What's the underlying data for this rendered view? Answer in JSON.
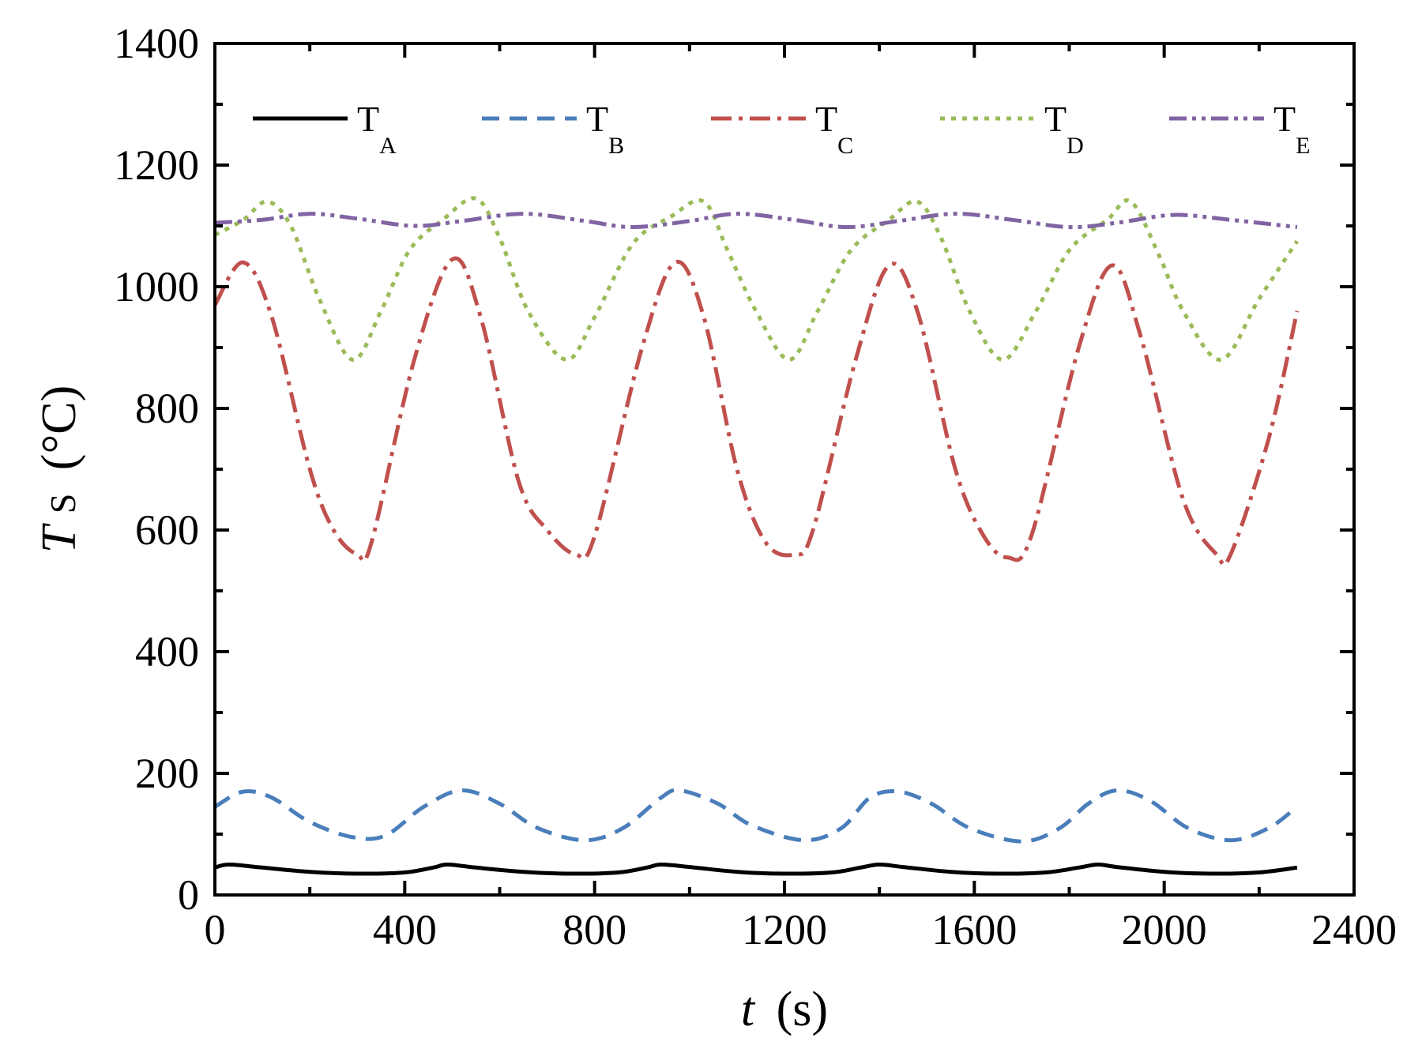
{
  "chart_data": {
    "type": "line",
    "title": "",
    "xlabel": {
      "var": "t",
      "unit": "(s)"
    },
    "ylabel": {
      "var": "T",
      "sub": "S",
      "unit": "(°C)"
    },
    "xlim": [
      0,
      2400
    ],
    "ylim": [
      0,
      1400
    ],
    "xticks": [
      0,
      400,
      800,
      1200,
      1600,
      2000,
      2400
    ],
    "xtick_labels": [
      "0",
      "400",
      "800",
      "1200",
      "1600",
      "2000",
      "2400"
    ],
    "yticks": [
      0,
      200,
      400,
      600,
      800,
      1000,
      1200,
      1400
    ],
    "ytick_labels": [
      "0",
      "200",
      "400",
      "600",
      "800",
      "1000",
      "1200",
      "1400"
    ],
    "grid": false,
    "legend_position": "top",
    "series": [
      {
        "name": "T_A",
        "label_main": "T",
        "label_sub": "A",
        "color": "#000000",
        "style": "solid",
        "x": [
          0,
          30,
          100,
          200,
          300,
          400,
          460,
          490,
          550,
          650,
          750,
          850,
          910,
          940,
          1000,
          1100,
          1200,
          1300,
          1360,
          1400,
          1450,
          1550,
          1650,
          1750,
          1820,
          1860,
          1900,
          2000,
          2100,
          2200,
          2280
        ],
        "y": [
          45,
          50,
          45,
          38,
          35,
          37,
          45,
          50,
          45,
          38,
          35,
          37,
          45,
          50,
          46,
          38,
          35,
          37,
          45,
          50,
          46,
          38,
          35,
          37,
          45,
          50,
          46,
          38,
          35,
          37,
          45
        ]
      },
      {
        "name": "T_B",
        "label_main": "T",
        "label_sub": "B",
        "color": "#4a7ebb",
        "style": "dashed",
        "x": [
          0,
          60,
          120,
          200,
          290,
          360,
          440,
          520,
          600,
          680,
          780,
          860,
          940,
          980,
          1060,
          1130,
          1240,
          1320,
          1380,
          1440,
          1510,
          1590,
          1700,
          1780,
          1840,
          1900,
          1970,
          2050,
          2140,
          2220,
          2280
        ],
        "y": [
          145,
          170,
          160,
          120,
          95,
          98,
          145,
          172,
          150,
          110,
          90,
          110,
          160,
          172,
          150,
          115,
          90,
          110,
          160,
          170,
          150,
          110,
          88,
          110,
          150,
          172,
          155,
          110,
          90,
          110,
          145
        ]
      },
      {
        "name": "T_C",
        "label_main": "T",
        "label_sub": "C",
        "color": "#c0504d",
        "style": "dashdot",
        "x": [
          0,
          60,
          120,
          200,
          250,
          300,
          330,
          420,
          500,
          560,
          640,
          700,
          760,
          800,
          900,
          970,
          1030,
          1100,
          1160,
          1220,
          1260,
          1350,
          1420,
          1480,
          1560,
          1620,
          1670,
          1720,
          1820,
          1890,
          1950,
          2040,
          2110,
          2140,
          2220,
          2280
        ],
        "y": [
          970,
          1040,
          950,
          700,
          600,
          560,
          580,
          880,
          1045,
          950,
          680,
          600,
          560,
          590,
          900,
          1040,
          950,
          700,
          580,
          560,
          600,
          880,
          1035,
          960,
          700,
          590,
          555,
          590,
          900,
          1035,
          920,
          650,
          560,
          560,
          750,
          960
        ]
      },
      {
        "name": "T_D",
        "label_main": "T",
        "label_sub": "D",
        "color": "#9bbb59",
        "style": "dotted",
        "x": [
          0,
          60,
          110,
          160,
          220,
          290,
          350,
          410,
          480,
          550,
          600,
          660,
          740,
          800,
          880,
          960,
          1030,
          1080,
          1140,
          1210,
          1270,
          1340,
          1420,
          1480,
          1530,
          1590,
          1660,
          1730,
          1800,
          1880,
          1930,
          1990,
          2040,
          2120,
          2200,
          2280
        ],
        "y": [
          1085,
          1110,
          1140,
          1100,
          980,
          880,
          960,
          1060,
          1110,
          1145,
          1080,
          960,
          880,
          950,
          1070,
          1115,
          1140,
          1060,
          960,
          880,
          960,
          1060,
          1110,
          1140,
          1080,
          960,
          880,
          960,
          1060,
          1110,
          1140,
          1050,
          960,
          880,
          980,
          1075
        ]
      },
      {
        "name": "T_E",
        "label_main": "T",
        "label_sub": "E",
        "color": "#8064a2",
        "style": "dashdotdot",
        "x": [
          0,
          100,
          200,
          300,
          420,
          520,
          650,
          780,
          880,
          1000,
          1100,
          1220,
          1330,
          1440,
          1560,
          1680,
          1800,
          1900,
          2020,
          2140,
          2280
        ],
        "y": [
          1105,
          1110,
          1120,
          1112,
          1100,
          1108,
          1120,
          1108,
          1098,
          1108,
          1120,
          1110,
          1098,
          1108,
          1120,
          1110,
          1098,
          1105,
          1118,
          1110,
          1098
        ]
      }
    ]
  }
}
